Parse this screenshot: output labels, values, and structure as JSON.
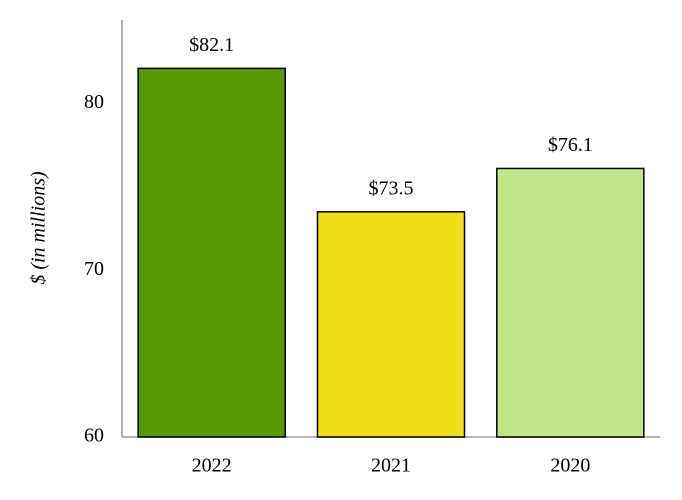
{
  "chart_data": {
    "type": "bar",
    "y_label": "$ (in millions)",
    "categories": [
      "2022",
      "2021",
      "2020"
    ],
    "values": [
      82.1,
      73.5,
      76.1
    ],
    "value_labels": [
      "$82.1",
      "$73.5",
      "$76.1"
    ],
    "colors": [
      "#5a9a08",
      "#eedf16",
      "#c0e68a"
    ],
    "ylim": [
      60,
      85
    ],
    "yticks": [
      60,
      70,
      80
    ],
    "grid": false
  }
}
